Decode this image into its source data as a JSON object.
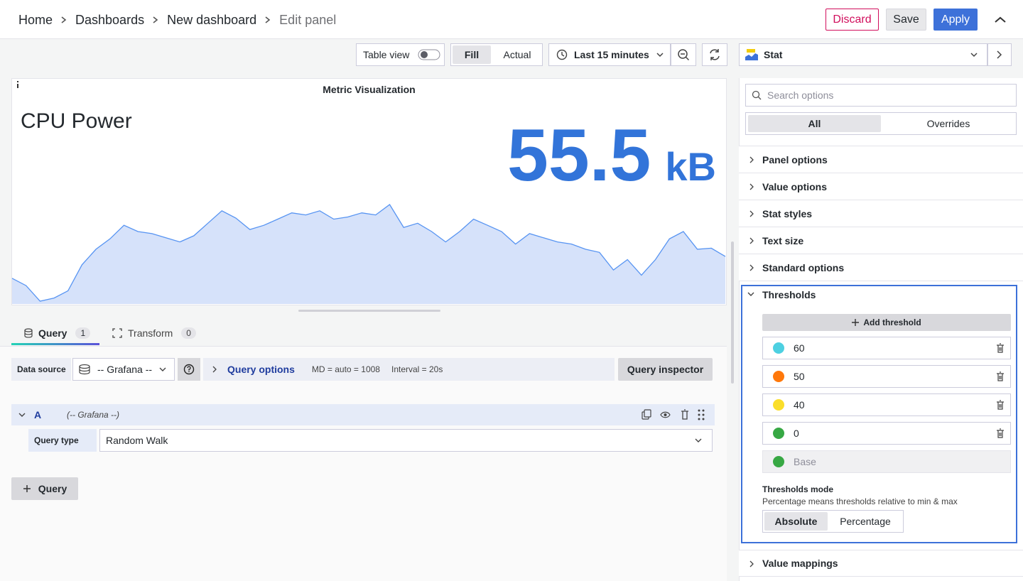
{
  "breadcrumbs": [
    "Home",
    "Dashboards",
    "New dashboard",
    "Edit panel"
  ],
  "header_buttons": {
    "discard": "Discard",
    "save": "Save",
    "apply": "Apply"
  },
  "toolbar": {
    "table_view": "Table view",
    "fill": "Fill",
    "actual": "Actual",
    "time_range": "Last 15 minutes",
    "visualization": "Stat"
  },
  "panel": {
    "title": "Metric Visualization",
    "stat_name": "CPU Power",
    "value": 55.5,
    "unit": "kB",
    "sparkline": {
      "color": "#5794f2",
      "fill": "#d6e2fa",
      "values": [
        27,
        20,
        5,
        8,
        15,
        40,
        55,
        65,
        78,
        72,
        70,
        66,
        62,
        68,
        80,
        92,
        85,
        74,
        78,
        84,
        90,
        88,
        92,
        84,
        86,
        90,
        88,
        98,
        76,
        80,
        72,
        62,
        72,
        84,
        78,
        72,
        60,
        70,
        66,
        62,
        60,
        55,
        52,
        35,
        45,
        30,
        45,
        65,
        72,
        55,
        56,
        48
      ]
    }
  },
  "query_tabs": [
    {
      "label": "Query",
      "count": 1
    },
    {
      "label": "Transform",
      "count": 0
    }
  ],
  "query_bar": {
    "data_source_label": "Data source",
    "data_source": "-- Grafana --",
    "query_options": "Query options",
    "max_data_points": "MD = auto = 1008",
    "interval": "Interval = 20s",
    "inspector": "Query inspector"
  },
  "query": {
    "ref_id": "A",
    "data_source": "(-- Grafana --)",
    "query_type_label": "Query type",
    "query_type": "Random Walk"
  },
  "add_query": "Query",
  "options_pane": {
    "search_placeholder": "Search options",
    "tabs": [
      "All",
      "Overrides"
    ],
    "sections": [
      "Panel options",
      "Value options",
      "Stat styles",
      "Text size",
      "Standard options"
    ],
    "thresholds": {
      "title": "Thresholds",
      "add": "Add threshold",
      "steps": [
        {
          "value": 60,
          "color": "#4dd0e1"
        },
        {
          "value": 50,
          "color": "#ff780a"
        },
        {
          "value": 40,
          "color": "#fade2a"
        },
        {
          "value": 0,
          "color": "#37a844"
        }
      ],
      "base": {
        "label": "Base",
        "color": "#37a844"
      },
      "mode_label": "Thresholds mode",
      "mode_description": "Percentage means thresholds relative to min & max",
      "modes": [
        "Absolute",
        "Percentage"
      ]
    },
    "after_sections": [
      "Value mappings"
    ]
  }
}
